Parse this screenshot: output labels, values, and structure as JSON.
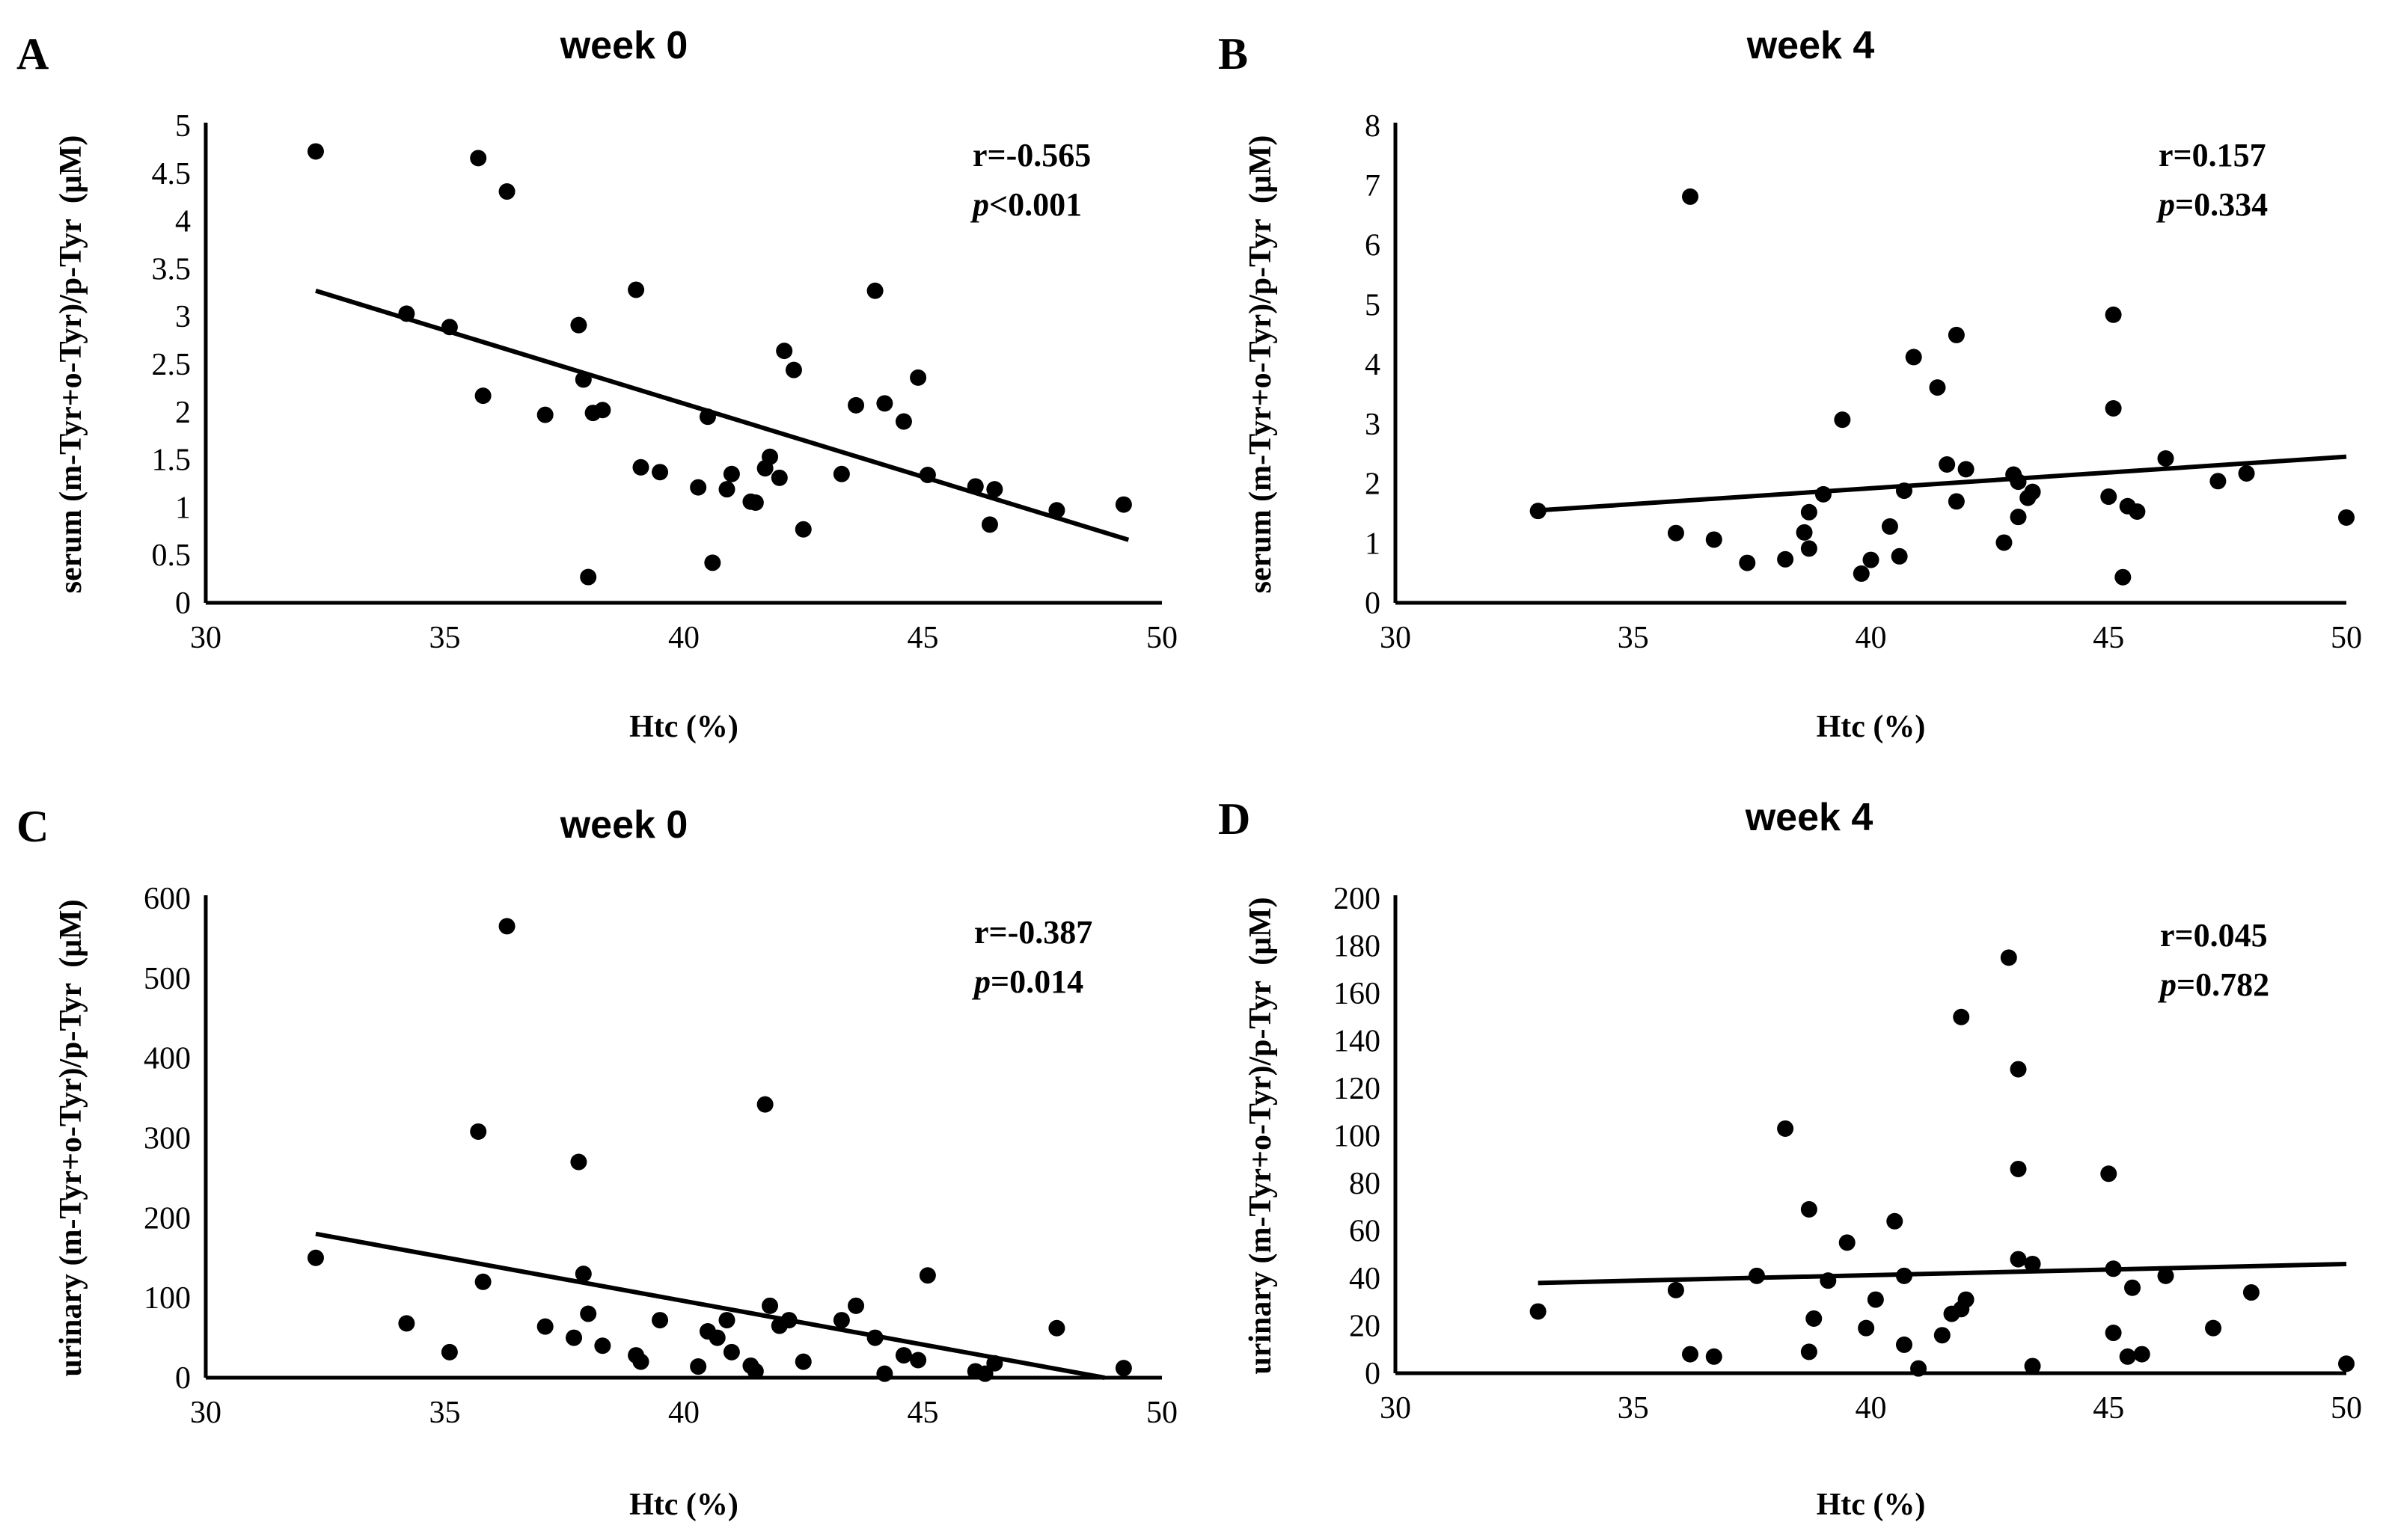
{
  "chart_data": [
    {
      "id": "A",
      "type": "scatter",
      "letter": "A",
      "title": "week 0",
      "xlabel": "Htc (%)",
      "ylabel": "serum (m-Tyr+o-Tyr)/p-Tyr  (μM)",
      "xlim": [
        30,
        50
      ],
      "ylim": [
        0,
        5
      ],
      "xticks": [
        30,
        35,
        40,
        45,
        50
      ],
      "yticks": [
        0,
        0.5,
        1,
        1.5,
        2,
        2.5,
        3,
        3.5,
        4,
        4.5,
        5
      ],
      "stat_r": "r=-0.565",
      "stat_p_label": "p",
      "stat_p_value": "<0.001",
      "trend": [
        [
          32.3,
          3.27
        ],
        [
          49.3,
          0.66
        ]
      ],
      "points": [
        [
          32.3,
          4.73
        ],
        [
          34.2,
          3.03
        ],
        [
          35.1,
          2.89
        ],
        [
          35.7,
          4.66
        ],
        [
          35.8,
          2.17
        ],
        [
          36.3,
          4.31
        ],
        [
          37.1,
          1.97
        ],
        [
          37.8,
          2.91
        ],
        [
          37.9,
          2.34
        ],
        [
          38.0,
          0.27
        ],
        [
          38.1,
          1.99
        ],
        [
          38.3,
          2.02
        ],
        [
          39.0,
          3.28
        ],
        [
          39.1,
          1.42
        ],
        [
          39.5,
          1.37
        ],
        [
          40.3,
          1.21
        ],
        [
          40.5,
          1.95
        ],
        [
          40.6,
          0.42
        ],
        [
          40.9,
          1.19
        ],
        [
          41.0,
          1.35
        ],
        [
          41.4,
          1.06
        ],
        [
          41.5,
          1.05
        ],
        [
          41.7,
          1.41
        ],
        [
          41.8,
          1.53
        ],
        [
          42.0,
          1.31
        ],
        [
          42.1,
          2.64
        ],
        [
          42.3,
          2.44
        ],
        [
          42.5,
          0.77
        ],
        [
          43.3,
          1.35
        ],
        [
          43.6,
          2.07
        ],
        [
          44.0,
          3.27
        ],
        [
          44.2,
          2.09
        ],
        [
          44.6,
          1.9
        ],
        [
          44.9,
          2.36
        ],
        [
          45.1,
          1.34
        ],
        [
          46.1,
          1.22
        ],
        [
          46.4,
          0.82
        ],
        [
          46.5,
          1.19
        ],
        [
          47.8,
          0.97
        ],
        [
          49.2,
          1.03
        ]
      ]
    },
    {
      "id": "B",
      "type": "scatter",
      "letter": "B",
      "title": "week 4",
      "xlabel": "Htc (%)",
      "ylabel": "serum (m-Tyr+o-Tyr)/p-Tyr  (μM)",
      "xlim": [
        30,
        50
      ],
      "ylim": [
        0,
        8
      ],
      "xticks": [
        30,
        35,
        40,
        45,
        50
      ],
      "yticks": [
        0,
        1,
        2,
        3,
        4,
        5,
        6,
        7,
        8
      ],
      "stat_r": "r=0.157",
      "stat_p_label": "p",
      "stat_p_value": "=0.334",
      "trend": [
        [
          33.0,
          1.55
        ],
        [
          50.0,
          2.45
        ]
      ],
      "points": [
        [
          33.0,
          1.54
        ],
        [
          35.9,
          1.17
        ],
        [
          36.2,
          6.81
        ],
        [
          36.7,
          1.06
        ],
        [
          37.4,
          0.67
        ],
        [
          38.2,
          0.73
        ],
        [
          38.6,
          1.18
        ],
        [
          38.7,
          1.52
        ],
        [
          38.7,
          0.91
        ],
        [
          39.0,
          1.82
        ],
        [
          39.4,
          3.07
        ],
        [
          39.8,
          0.49
        ],
        [
          40.0,
          0.72
        ],
        [
          40.4,
          1.28
        ],
        [
          40.6,
          0.78
        ],
        [
          40.7,
          1.88
        ],
        [
          40.9,
          4.12
        ],
        [
          41.4,
          3.61
        ],
        [
          41.6,
          2.32
        ],
        [
          41.8,
          4.49
        ],
        [
          41.8,
          1.7
        ],
        [
          42.0,
          2.24
        ],
        [
          42.8,
          1.01
        ],
        [
          43.0,
          2.15
        ],
        [
          43.1,
          1.44
        ],
        [
          43.1,
          2.03
        ],
        [
          43.3,
          1.76
        ],
        [
          43.4,
          1.86
        ],
        [
          45.0,
          1.78
        ],
        [
          45.1,
          4.83
        ],
        [
          45.1,
          3.26
        ],
        [
          45.3,
          0.43
        ],
        [
          45.4,
          1.62
        ],
        [
          45.6,
          1.53
        ],
        [
          46.2,
          2.42
        ],
        [
          47.3,
          2.04
        ],
        [
          47.9,
          2.17
        ],
        [
          50.0,
          1.43
        ]
      ]
    },
    {
      "id": "C",
      "type": "scatter",
      "letter": "C",
      "title": "week 0",
      "xlabel": "Htc (%)",
      "ylabel": "urinary (m-Tyr+o-Tyr)/p-Tyr  (μM)",
      "xlim": [
        30,
        50
      ],
      "ylim": [
        0,
        600
      ],
      "xticks": [
        30,
        35,
        40,
        45,
        50
      ],
      "yticks": [
        0,
        100,
        200,
        300,
        400,
        500,
        600
      ],
      "stat_r": "r=-0.387",
      "stat_p_label": "p",
      "stat_p_value": "=0.014",
      "trend": [
        [
          32.3,
          180
        ],
        [
          48.8,
          0
        ]
      ],
      "points": [
        [
          32.3,
          150
        ],
        [
          34.2,
          68
        ],
        [
          35.1,
          32
        ],
        [
          35.7,
          308
        ],
        [
          35.8,
          120
        ],
        [
          36.3,
          565
        ],
        [
          37.1,
          64
        ],
        [
          37.7,
          50
        ],
        [
          37.8,
          270
        ],
        [
          37.9,
          130
        ],
        [
          38.0,
          80
        ],
        [
          38.3,
          40
        ],
        [
          39.0,
          28
        ],
        [
          39.1,
          20
        ],
        [
          39.5,
          72
        ],
        [
          40.3,
          14
        ],
        [
          40.5,
          58
        ],
        [
          40.7,
          50
        ],
        [
          40.9,
          72
        ],
        [
          41.0,
          32
        ],
        [
          41.4,
          15
        ],
        [
          41.5,
          8
        ],
        [
          41.7,
          342
        ],
        [
          41.8,
          90
        ],
        [
          42.0,
          65
        ],
        [
          42.2,
          72
        ],
        [
          42.5,
          20
        ],
        [
          43.3,
          72
        ],
        [
          43.6,
          90
        ],
        [
          44.0,
          50
        ],
        [
          44.2,
          5
        ],
        [
          44.6,
          28
        ],
        [
          44.9,
          22
        ],
        [
          45.1,
          128
        ],
        [
          46.1,
          8
        ],
        [
          46.3,
          5
        ],
        [
          46.5,
          18
        ],
        [
          47.8,
          62
        ],
        [
          49.2,
          12
        ]
      ]
    },
    {
      "id": "D",
      "type": "scatter",
      "letter": "D",
      "title": "week 4",
      "xlabel": "Htc (%)",
      "ylabel": "urinary (m-Tyr+o-Tyr)/p-Tyr  (μM)",
      "xlim": [
        30,
        50
      ],
      "ylim": [
        0,
        200
      ],
      "xticks": [
        30,
        35,
        40,
        45,
        50
      ],
      "yticks": [
        0,
        20,
        40,
        60,
        80,
        100,
        120,
        140,
        160,
        180,
        200
      ],
      "stat_r": "r=0.045",
      "stat_p_label": "p",
      "stat_p_value": "=0.782",
      "trend": [
        [
          33.0,
          38
        ],
        [
          50.0,
          46
        ]
      ],
      "points": [
        [
          33.0,
          26
        ],
        [
          35.9,
          35
        ],
        [
          36.2,
          8
        ],
        [
          36.7,
          7
        ],
        [
          37.6,
          41
        ],
        [
          38.2,
          103
        ],
        [
          38.7,
          69
        ],
        [
          38.7,
          9
        ],
        [
          38.8,
          23
        ],
        [
          39.1,
          39
        ],
        [
          39.5,
          55
        ],
        [
          39.9,
          19
        ],
        [
          40.1,
          31
        ],
        [
          40.5,
          64
        ],
        [
          40.7,
          12
        ],
        [
          40.7,
          41
        ],
        [
          41.0,
          2
        ],
        [
          41.5,
          16
        ],
        [
          41.7,
          25
        ],
        [
          41.9,
          27
        ],
        [
          41.9,
          150
        ],
        [
          42.0,
          31
        ],
        [
          42.9,
          175
        ],
        [
          43.1,
          48
        ],
        [
          43.1,
          128
        ],
        [
          43.1,
          86
        ],
        [
          43.4,
          3
        ],
        [
          43.4,
          46
        ],
        [
          45.0,
          84
        ],
        [
          45.1,
          17
        ],
        [
          45.1,
          44
        ],
        [
          45.4,
          7
        ],
        [
          45.5,
          36
        ],
        [
          45.7,
          8
        ],
        [
          46.2,
          41
        ],
        [
          47.2,
          19
        ],
        [
          48.0,
          34
        ],
        [
          50.0,
          4
        ]
      ]
    }
  ]
}
